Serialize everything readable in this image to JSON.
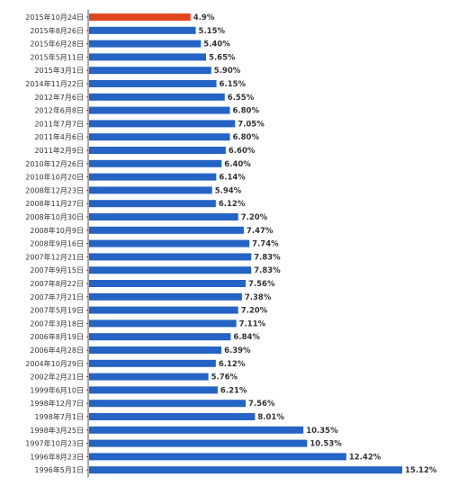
{
  "colors": {
    "bar": "#2563c4",
    "highlight_bar": "#e0461e",
    "highlight_label": "#e0461e",
    "text": "#333333",
    "axis": "#555555"
  },
  "chart_data": {
    "type": "bar",
    "orientation": "horizontal",
    "title": "",
    "xlabel": "",
    "ylabel": "",
    "xlim": [
      0,
      15.5
    ],
    "grid": false,
    "legend": "none",
    "highlight_index": 0,
    "categories": [
      "2015年10月24日",
      "2015年8月26日",
      "2015年6月28日",
      "2015年5月11日",
      "2015年3月1日",
      "2014年11月22日",
      "2012年7月6日",
      "2012年6月8日",
      "2011年7月7日",
      "2011年4月6日",
      "2011年2月9日",
      "2010年12月26日",
      "2010年10月20日",
      "2008年12月23日",
      "2008年11月27日",
      "2008年10月30日",
      "2008年10月9日",
      "2008年9月16日",
      "2007年12月21日",
      "2007年9月15日",
      "2007年8月22日",
      "2007年7月21日",
      "2007年5月19日",
      "2007年3月18日",
      "2006年8月19日",
      "2006年4月28日",
      "2004年10月29日",
      "2002年2月21日",
      "1999年6月10日",
      "1998年12月7日",
      "1998年7月1日",
      "1998年3月25日",
      "1997年10月23日",
      "1996年8月23日",
      "1996年5月1日"
    ],
    "values": [
      4.9,
      5.15,
      5.4,
      5.65,
      5.9,
      6.15,
      6.55,
      6.8,
      7.05,
      6.8,
      6.6,
      6.4,
      6.14,
      5.94,
      6.12,
      7.2,
      7.47,
      7.74,
      7.83,
      7.83,
      7.56,
      7.38,
      7.2,
      7.11,
      6.84,
      6.39,
      6.12,
      5.76,
      6.21,
      7.56,
      8.01,
      10.35,
      10.53,
      12.42,
      15.12
    ],
    "value_labels": [
      "4.9%",
      "5.15%",
      "5.40%",
      "5.65%",
      "5.90%",
      "6.15%",
      "6.55%",
      "6.80%",
      "7.05%",
      "6.80%",
      "6.60%",
      "6.40%",
      "6.14%",
      "5.94%",
      "6.12%",
      "7.20%",
      "7.47%",
      "7.74%",
      "7.83%",
      "7.83%",
      "7.56%",
      "7.38%",
      "7.20%",
      "7.11%",
      "6.84%",
      "6.39%",
      "6.12%",
      "5.76%",
      "6.21%",
      "7.56%",
      "8.01%",
      "10.35%",
      "10.53%",
      "12.42%",
      "15.12%"
    ]
  }
}
